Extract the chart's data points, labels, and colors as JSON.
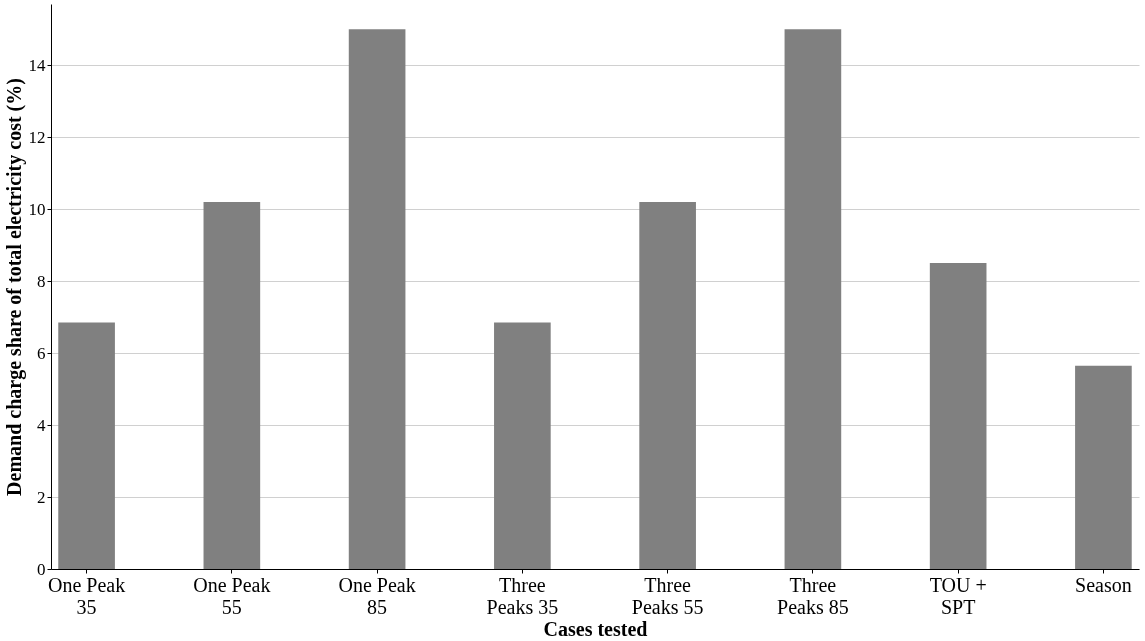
{
  "chart_data": {
    "type": "bar",
    "xlabel": "Cases tested",
    "ylabel": "Demand charge share of total electricity cost (%)",
    "categories": [
      "One Peak\n35",
      "One Peak\n55",
      "One Peak\n85",
      "Three\nPeaks 35",
      "Three\nPeaks 55",
      "Three\nPeaks 85",
      "TOU +\nSPT",
      "Season"
    ],
    "values": [
      6.85,
      10.2,
      15.0,
      6.85,
      10.2,
      15.0,
      8.5,
      5.65
    ],
    "color": "#808080",
    "ylim": [
      0,
      15.7
    ],
    "yticks": [
      0,
      2,
      4,
      6,
      8,
      10,
      12,
      14
    ],
    "grid": "y"
  }
}
